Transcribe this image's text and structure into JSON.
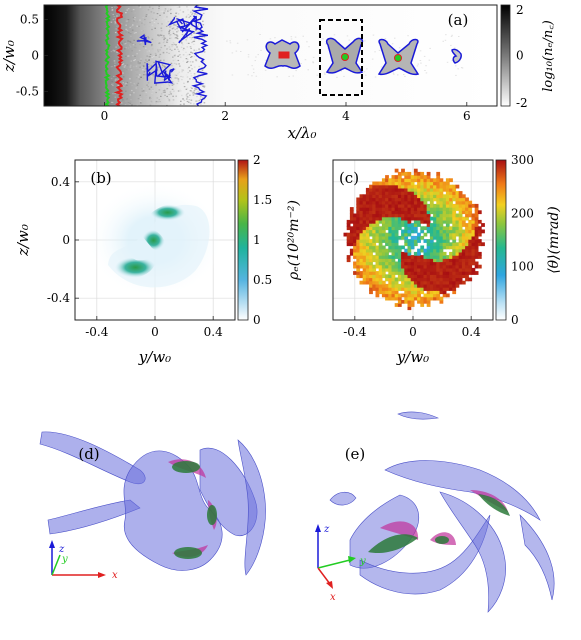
{
  "chart_data": [
    {
      "panel": "(a)",
      "type": "heatmap",
      "xlabel": "x/λ₀",
      "ylabel": "z/w₀",
      "xticks": [
        "0",
        "2",
        "4",
        "6"
      ],
      "yticks": [
        "0.5",
        "0",
        "-0.5"
      ],
      "xlim": [
        -1.0,
        6.5
      ],
      "ylim": [
        -0.7,
        0.7
      ],
      "colorbar": {
        "label": "log₁₀(nₑ/n꜀)",
        "ticks": [
          "2",
          "0",
          "-2"
        ],
        "range": [
          -2,
          2
        ],
        "scheme": "gray"
      },
      "contours": [
        {
          "name": "",
          "color": "#22cc22",
          "x": 0.05
        },
        {
          "name": "",
          "color": "#e02020",
          "x": 0.25
        },
        {
          "name": "",
          "color": "#1a1ad8",
          "x": 1.6
        }
      ],
      "bunches": [
        2.8,
        3.85,
        4.75,
        5.85
      ],
      "highlight_box": {
        "x": [
          3.5,
          4.25
        ],
        "z": [
          -0.55,
          0.55
        ]
      }
    },
    {
      "panel": "(b)",
      "type": "heatmap",
      "xlabel": "y/w₀",
      "ylabel": "z/w₀",
      "xticks": [
        "-0.4",
        "0",
        "0.4"
      ],
      "yticks": [
        "0.4",
        "0",
        "-0.4"
      ],
      "xlim": [
        -0.55,
        0.55
      ],
      "ylim": [
        -0.55,
        0.55
      ],
      "colorbar": {
        "label": "ρₑ(10²⁰m⁻²)",
        "ticks": [
          "2",
          "1.5",
          "1",
          "0.5",
          "0"
        ],
        "range": [
          0,
          2
        ],
        "scheme": "parula"
      }
    },
    {
      "panel": "(c)",
      "type": "heatmap",
      "xlabel": "y/w₀",
      "ylabel": "",
      "xticks": [
        "-0.4",
        "0",
        "0.4"
      ],
      "xlim": [
        -0.55,
        0.55
      ],
      "ylim": [
        -0.55,
        0.55
      ],
      "colorbar": {
        "label": "⟨θ⟩(mrad)",
        "ticks": [
          "300",
          "200",
          "100",
          "0"
        ],
        "range": [
          0,
          300
        ],
        "scheme": "jet"
      }
    }
  ],
  "renders": [
    {
      "panel": "(d)",
      "axes": {
        "z": "z",
        "y": "y",
        "x": "x"
      }
    },
    {
      "panel": "(e)",
      "axes": {
        "z": "z",
        "y": "y",
        "x": "x"
      }
    }
  ],
  "colors": {
    "green": "#22cc22",
    "red": "#e02020",
    "blue": "#1a1ad8",
    "volume": "#7f85e0",
    "magenta": "#c0309a"
  }
}
